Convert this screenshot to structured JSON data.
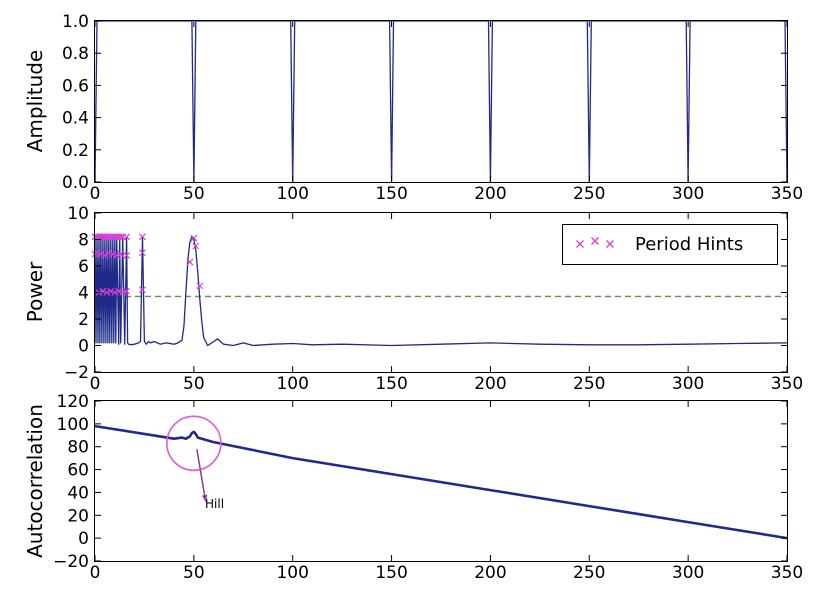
{
  "chart_data": [
    {
      "type": "line",
      "ylabel": "Amplitude",
      "xlim": [
        0,
        350
      ],
      "ylim": [
        0,
        1
      ],
      "xticks": [
        "0",
        "50",
        "100",
        "150",
        "200",
        "250",
        "300",
        "350"
      ],
      "yticks": [
        "0.0",
        "0.2",
        "0.4",
        "0.6",
        "0.8",
        "1.0"
      ],
      "series": [
        {
          "color": "#1f2a8a",
          "x": [
            0,
            1,
            49,
            50,
            51,
            99,
            100,
            101,
            149,
            150,
            151,
            199,
            200,
            201,
            249,
            250,
            251,
            299,
            300,
            301,
            349,
            350
          ],
          "y": [
            0.0,
            1.0,
            1.0,
            0.0,
            1.0,
            1.0,
            0.0,
            1.0,
            1.0,
            0.0,
            1.0,
            1.0,
            0.0,
            1.0,
            1.0,
            0.0,
            1.0,
            1.0,
            0.0,
            1.0,
            1.0,
            0.0
          ]
        }
      ]
    },
    {
      "type": "line",
      "ylabel": "Power",
      "xlim": [
        0,
        350
      ],
      "ylim": [
        -2,
        10
      ],
      "xticks": [
        "0",
        "50",
        "100",
        "150",
        "200",
        "250",
        "300",
        "350"
      ],
      "yticks": [
        "−2",
        "0",
        "2",
        "4",
        "6",
        "8",
        "10"
      ],
      "threshold": 3.7,
      "threshold_color": "#5a9a4a",
      "series": [
        {
          "color": "#1f2a8a",
          "x": [
            0,
            0.5,
            1,
            1.5,
            2,
            2.5,
            3,
            3.5,
            4,
            4.5,
            5,
            5.5,
            6,
            6.5,
            7,
            7.5,
            8,
            8.5,
            9,
            9.5,
            10,
            10.5,
            11,
            12,
            12.5,
            13,
            14,
            15,
            16,
            16.5,
            17,
            18,
            20,
            22,
            23,
            24,
            25,
            26,
            27,
            28,
            30,
            33,
            36,
            40,
            42,
            44,
            45,
            46,
            47,
            48,
            49,
            50,
            51,
            52,
            53,
            54,
            55,
            57,
            59,
            62,
            65,
            70,
            75,
            80,
            90,
            100,
            110,
            125,
            150,
            175,
            200,
            225,
            250,
            275,
            300,
            325,
            350
          ],
          "y": [
            8.2,
            0.2,
            8.2,
            0.2,
            8.2,
            0.2,
            8.2,
            0.2,
            8.2,
            0.2,
            8.2,
            0.2,
            8.2,
            0.2,
            8.2,
            0.2,
            8.2,
            0.2,
            8.2,
            0.2,
            8.2,
            0.2,
            8.2,
            0.1,
            8.2,
            0.2,
            8.2,
            0.1,
            8.2,
            0.2,
            0.1,
            0.05,
            0.1,
            0.2,
            0.3,
            8.2,
            0.3,
            0.1,
            0.3,
            0.2,
            0.3,
            0.1,
            0.2,
            0.1,
            0.2,
            0.4,
            1.5,
            4.0,
            6.5,
            7.8,
            8.2,
            8.0,
            7.2,
            5.5,
            3.5,
            1.8,
            0.6,
            0.0,
            0.2,
            0.5,
            0.1,
            0.0,
            0.2,
            0.0,
            0.1,
            0.15,
            0.05,
            0.1,
            0.0,
            0.1,
            0.2,
            0.1,
            0.05,
            0.05,
            0.1,
            0.15,
            0.2
          ]
        }
      ],
      "hints": {
        "name": "Period Hints",
        "color": "#d63fd6",
        "x": [
          0,
          1,
          2,
          3,
          4,
          5,
          6,
          7,
          8,
          9,
          10,
          11,
          12,
          13,
          14,
          16,
          0,
          1,
          3,
          5,
          7,
          9,
          11,
          13,
          16,
          2,
          4,
          6,
          8,
          10,
          12,
          14,
          16,
          24,
          24,
          24,
          48,
          50,
          51,
          53
        ],
        "y": [
          8.2,
          8.2,
          8.2,
          8.2,
          8.2,
          8.2,
          8.2,
          8.2,
          8.2,
          8.2,
          8.2,
          8.2,
          8.2,
          8.2,
          8.2,
          8.2,
          6.9,
          7.0,
          6.9,
          6.8,
          7.0,
          6.9,
          6.8,
          6.9,
          6.8,
          4.0,
          4.1,
          4.0,
          4.1,
          4.0,
          4.1,
          4.0,
          4.1,
          8.2,
          7.0,
          4.2,
          6.3,
          8.1,
          7.5,
          4.5
        ]
      }
    },
    {
      "type": "line",
      "ylabel": "Autocorrelation",
      "xlim": [
        0,
        350
      ],
      "ylim": [
        -20,
        120
      ],
      "xticks": [
        "0",
        "50",
        "100",
        "150",
        "200",
        "250",
        "300",
        "350"
      ],
      "yticks": [
        "−20",
        "0",
        "20",
        "40",
        "60",
        "80",
        "100",
        "120"
      ],
      "series": [
        {
          "color": "#1f2a8a",
          "x": [
            0,
            40,
            44,
            46,
            48,
            49,
            50,
            51,
            52,
            54,
            56,
            60,
            100,
            150,
            200,
            250,
            300,
            350
          ],
          "y": [
            98,
            87,
            88,
            87,
            89,
            92,
            93,
            91,
            88,
            87,
            86,
            84,
            70,
            56,
            42,
            28,
            14,
            0
          ]
        }
      ],
      "annotation": {
        "text": "Hill",
        "x": 50,
        "y": 83,
        "text_x": 56,
        "text_y": 25,
        "color": "#e05ae0",
        "arrow_color": "#8a3f8a"
      }
    }
  ]
}
